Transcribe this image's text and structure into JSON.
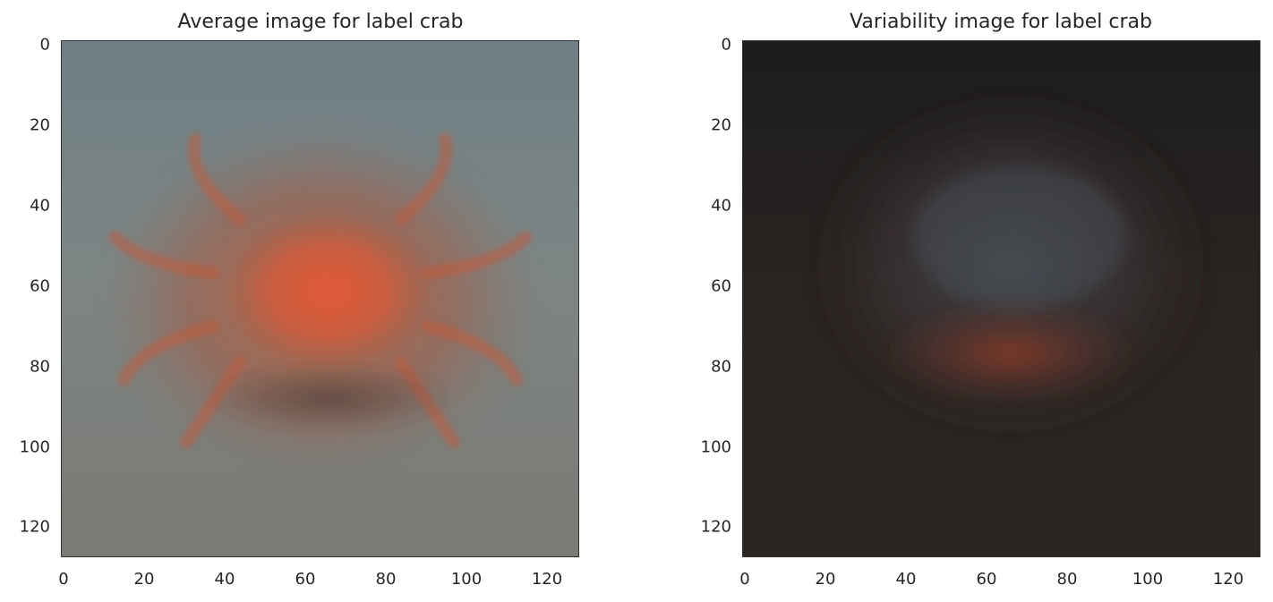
{
  "panels": [
    {
      "title": "Average image for label crab",
      "y_ticks": [
        "0",
        "20",
        "40",
        "60",
        "80",
        "100",
        "120"
      ],
      "x_ticks": [
        "0",
        "20",
        "40",
        "60",
        "80",
        "100",
        "120"
      ],
      "image_scene": "average-crab",
      "background_color": "#6f7b7c",
      "subject_color": "#d45a36"
    },
    {
      "title": "Variability image for label crab",
      "y_ticks": [
        "0",
        "20",
        "40",
        "60",
        "80",
        "100",
        "120"
      ],
      "x_ticks": [
        "0",
        "20",
        "40",
        "60",
        "80",
        "100",
        "120"
      ],
      "image_scene": "variability-crab",
      "background_color": "#231f1e",
      "subject_color": "#7a3a2c"
    }
  ]
}
